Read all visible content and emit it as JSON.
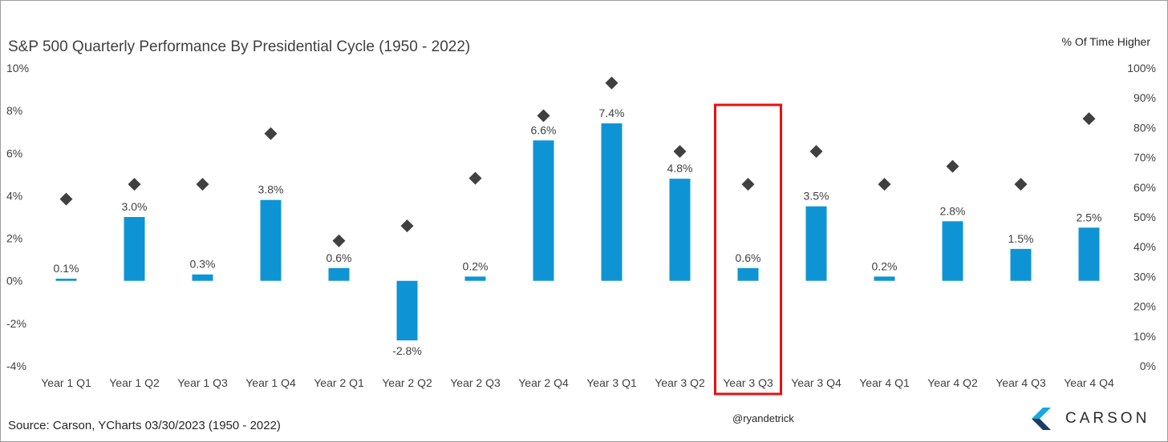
{
  "title": "S&P 500 Quarterly Performance By Presidential Cycle (1950 - 2022)",
  "right_axis_title": "% Of Time Higher",
  "source": "Source: Carson, YCharts 03/30/2023 (1950 - 2022)",
  "handle": "@ryandetrick",
  "logo": {
    "text": "CARSON",
    "icon": "carson-logo-icon"
  },
  "colors": {
    "bar": "#0e94d4",
    "marker": "#404040",
    "highlight": "#e81010"
  },
  "highlight_category": "Year 3 Q3",
  "chart_data": {
    "type": "bar",
    "categories": [
      "Year 1 Q1",
      "Year 1 Q2",
      "Year 1 Q3",
      "Year 1 Q4",
      "Year 2 Q1",
      "Year 2 Q2",
      "Year 2 Q3",
      "Year 2 Q4",
      "Year 3 Q1",
      "Year 3 Q2",
      "Year 3 Q3",
      "Year 3 Q4",
      "Year 4 Q1",
      "Year 4 Q2",
      "Year 4 Q3",
      "Year 4 Q4"
    ],
    "series": [
      {
        "values": [
          0.1,
          3.0,
          0.3,
          3.8,
          0.6,
          -2.8,
          0.2,
          6.6,
          7.4,
          4.8,
          0.6,
          3.5,
          0.2,
          2.8,
          1.5,
          2.5
        ],
        "labels": [
          "0.1%",
          "3.0%",
          "0.3%",
          "3.8%",
          "0.6%",
          "-2.8%",
          "0.2%",
          "6.6%",
          "7.4%",
          "4.8%",
          "0.6%",
          "3.5%",
          "0.2%",
          "2.8%",
          "1.5%",
          "2.5%"
        ],
        "axis": "left",
        "type": "bar"
      },
      {
        "values": [
          56,
          61,
          61,
          78,
          42,
          47,
          63,
          84,
          95,
          72,
          61,
          72,
          61,
          67,
          61,
          83
        ],
        "axis": "right",
        "type": "scatter",
        "marker": "diamond"
      }
    ],
    "ylim_left": [
      -4,
      10
    ],
    "yticks_left": [
      "-4%",
      "-2%",
      "0%",
      "2%",
      "4%",
      "6%",
      "8%",
      "10%"
    ],
    "ylim_right": [
      0,
      100
    ],
    "yticks_right": [
      "0%",
      "10%",
      "20%",
      "30%",
      "40%",
      "50%",
      "60%",
      "70%",
      "80%",
      "90%",
      "100%"
    ],
    "grid": false
  }
}
